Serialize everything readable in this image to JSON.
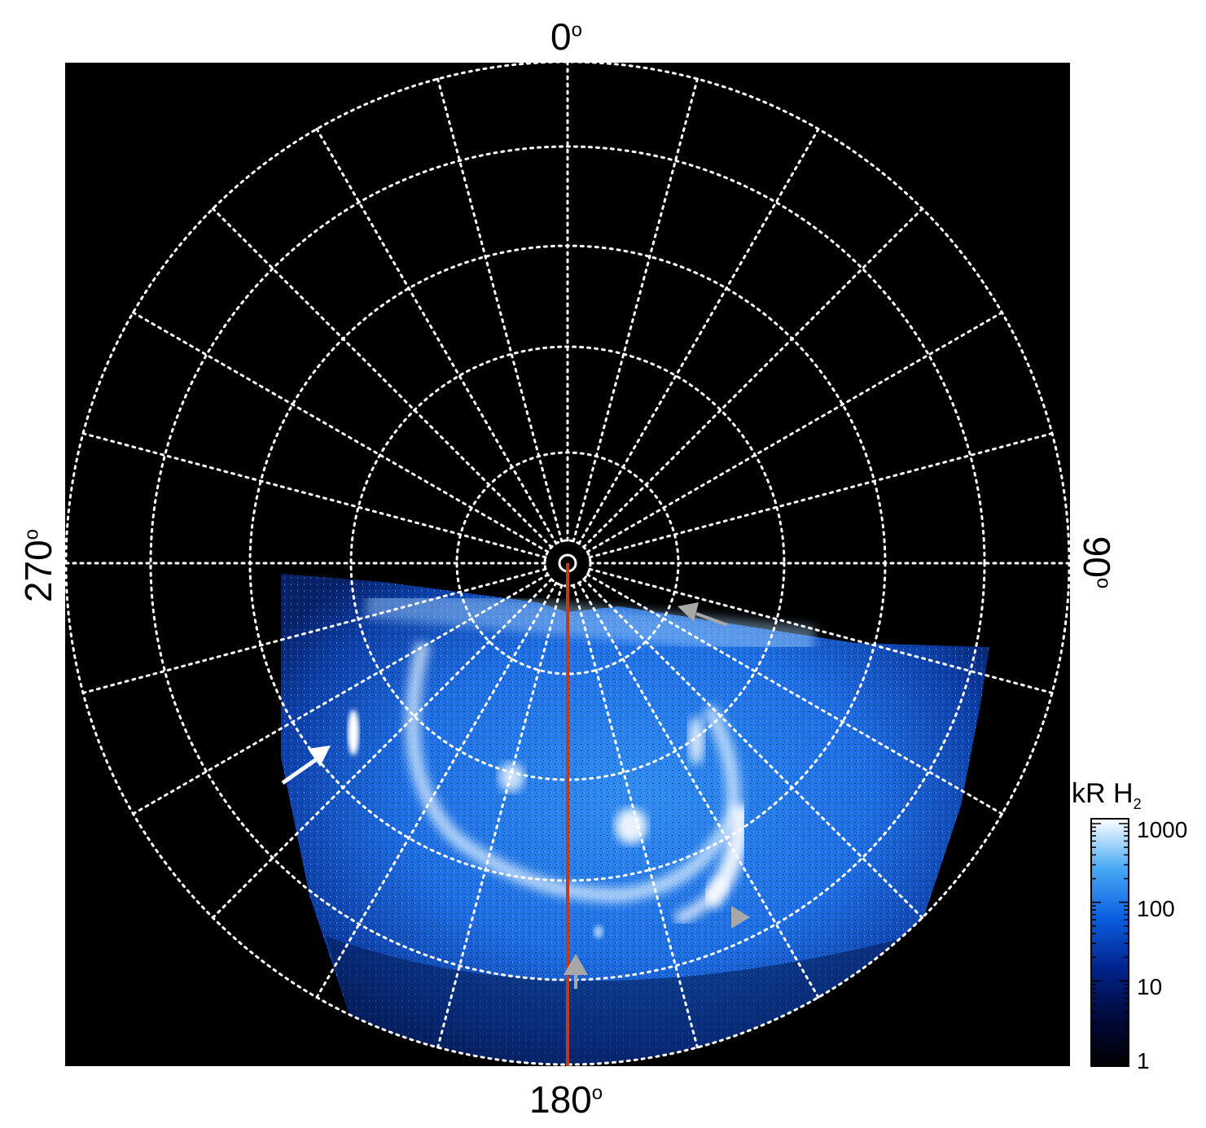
{
  "labels": {
    "top": "0",
    "right": "90",
    "bottom": "180",
    "left": "270",
    "degree_symbol": "o"
  },
  "colorbar": {
    "title_main": "kR H",
    "title_sub": "2",
    "ticks": [
      "1000",
      "100",
      "10",
      "1"
    ],
    "scale": "log",
    "range": [
      1,
      1000
    ]
  },
  "grid": {
    "style": "dotted",
    "color": "#ffffff",
    "meridian_spacing_deg": 15,
    "parallel_rings": 6
  },
  "colors": {
    "background": "#000000",
    "aurora_high": "#ffffff",
    "aurora_mid": "#2a8cff",
    "aurora_low": "#00104a",
    "reference_line": "#c23a1c",
    "arrow_white": "#ffffff",
    "arrow_gray": "#a8a8a8"
  },
  "annotations": [
    {
      "icon": "white-arrow-icon"
    },
    {
      "icon": "gray-arrow-icon"
    },
    {
      "icon": "gray-triangle-icon"
    },
    {
      "icon": "gray-upward-arrow-icon"
    }
  ]
}
